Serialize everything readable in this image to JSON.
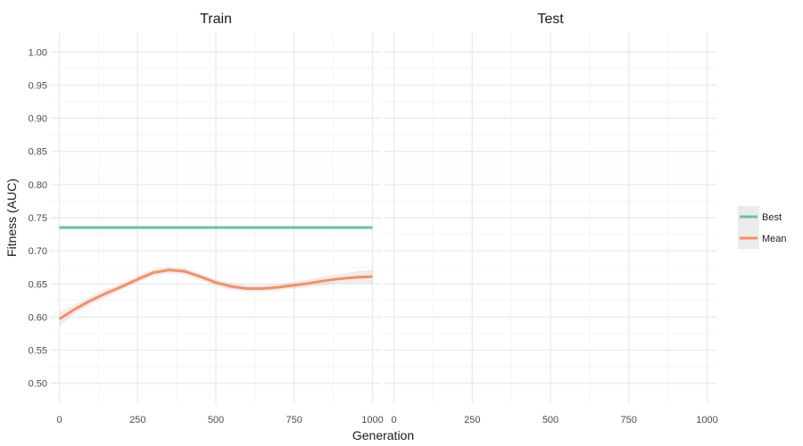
{
  "chart_data": {
    "type": "line",
    "title": "",
    "xlabel": "Generation",
    "ylabel": "Fitness (AUC)",
    "facets": [
      "Train",
      "Test"
    ],
    "xlim": [
      -30,
      1030
    ],
    "ylim": [
      0.47,
      1.03
    ],
    "x_ticks": [
      0,
      250,
      500,
      750,
      1000
    ],
    "x_tick_labels": [
      "0",
      "250",
      "500",
      "750",
      "1000"
    ],
    "y_ticks": [
      0.5,
      0.55,
      0.6,
      0.65,
      0.7,
      0.75,
      0.8,
      0.85,
      0.9,
      0.95,
      1.0
    ],
    "y_tick_labels": [
      "0.50",
      "0.55",
      "0.60",
      "0.65",
      "0.70",
      "0.75",
      "0.80",
      "0.85",
      "0.90",
      "0.95",
      "1.00"
    ],
    "grid": true,
    "legend_position": "right",
    "series": [
      {
        "name": "Best",
        "facet": "Train",
        "color": "#66c2a5",
        "x": [
          0,
          1000
        ],
        "y": [
          0.735,
          0.735
        ]
      },
      {
        "name": "Mean",
        "facet": "Train",
        "color": "#fc8d62",
        "x": [
          0,
          50,
          100,
          150,
          200,
          250,
          300,
          350,
          400,
          450,
          500,
          550,
          600,
          650,
          700,
          750,
          800,
          850,
          900,
          950,
          1000
        ],
        "y": [
          0.597,
          0.612,
          0.625,
          0.636,
          0.646,
          0.657,
          0.667,
          0.671,
          0.669,
          0.661,
          0.652,
          0.646,
          0.643,
          0.643,
          0.645,
          0.648,
          0.651,
          0.655,
          0.658,
          0.66,
          0.661
        ],
        "band_lower": [
          0.587,
          0.605,
          0.619,
          0.63,
          0.641,
          0.652,
          0.662,
          0.666,
          0.664,
          0.656,
          0.647,
          0.641,
          0.638,
          0.638,
          0.64,
          0.643,
          0.645,
          0.648,
          0.651,
          0.651,
          0.65
        ],
        "band_upper": [
          0.607,
          0.619,
          0.631,
          0.642,
          0.651,
          0.662,
          0.672,
          0.676,
          0.674,
          0.666,
          0.657,
          0.651,
          0.648,
          0.648,
          0.65,
          0.653,
          0.657,
          0.662,
          0.665,
          0.669,
          0.672
        ]
      }
    ]
  }
}
